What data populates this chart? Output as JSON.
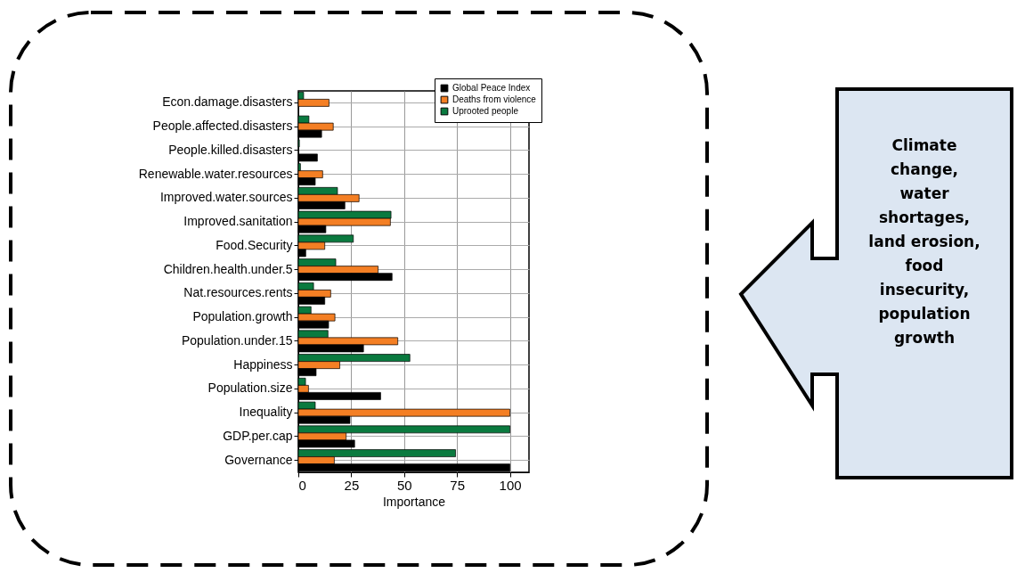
{
  "chart_data": {
    "type": "bar",
    "orientation": "horizontal",
    "xlabel": "Importance",
    "categories": [
      "Econ.damage.disasters",
      "People.affected.disasters",
      "People.killed.disasters",
      "Renewable.water.resources",
      "Improved.water.sources",
      "Improved.sanitation",
      "Food.Security",
      "Children.health.under.5",
      "Nat.resources.rents",
      "Population.growth",
      "Population.under.15",
      "Happiness",
      "Population.size",
      "Inequality",
      "GDP.per.cap",
      "Governance"
    ],
    "series": [
      {
        "name": "Uprooted people",
        "color": "#0a7a3f",
        "values": [
          2.5,
          5,
          0.5,
          1,
          18.5,
          43.8,
          26,
          17.7,
          7.2,
          6,
          14,
          52.7,
          3.4,
          8,
          100,
          74.3
        ]
      },
      {
        "name": "Deaths from violence",
        "color": "#f47f24",
        "values": [
          14.5,
          16.5,
          0,
          11.5,
          28.7,
          43.5,
          12.5,
          37.7,
          15.3,
          17.3,
          47,
          19.6,
          4.8,
          100,
          22.6,
          17
        ]
      },
      {
        "name": "Global Peace Index",
        "color": "#000000",
        "values": [
          0,
          11,
          9,
          8,
          22,
          13,
          3.5,
          44.3,
          12.5,
          14.3,
          30.8,
          8.4,
          38.9,
          24.4,
          26.6,
          100
        ]
      }
    ],
    "xlim": [
      0,
      109
    ],
    "xticks": [
      0,
      25,
      50,
      75,
      100
    ],
    "grid": true,
    "legend": "top right",
    "annotations": [
      "Climate change, water shortages, land erosion, food insecurity, population growth"
    ]
  }
}
